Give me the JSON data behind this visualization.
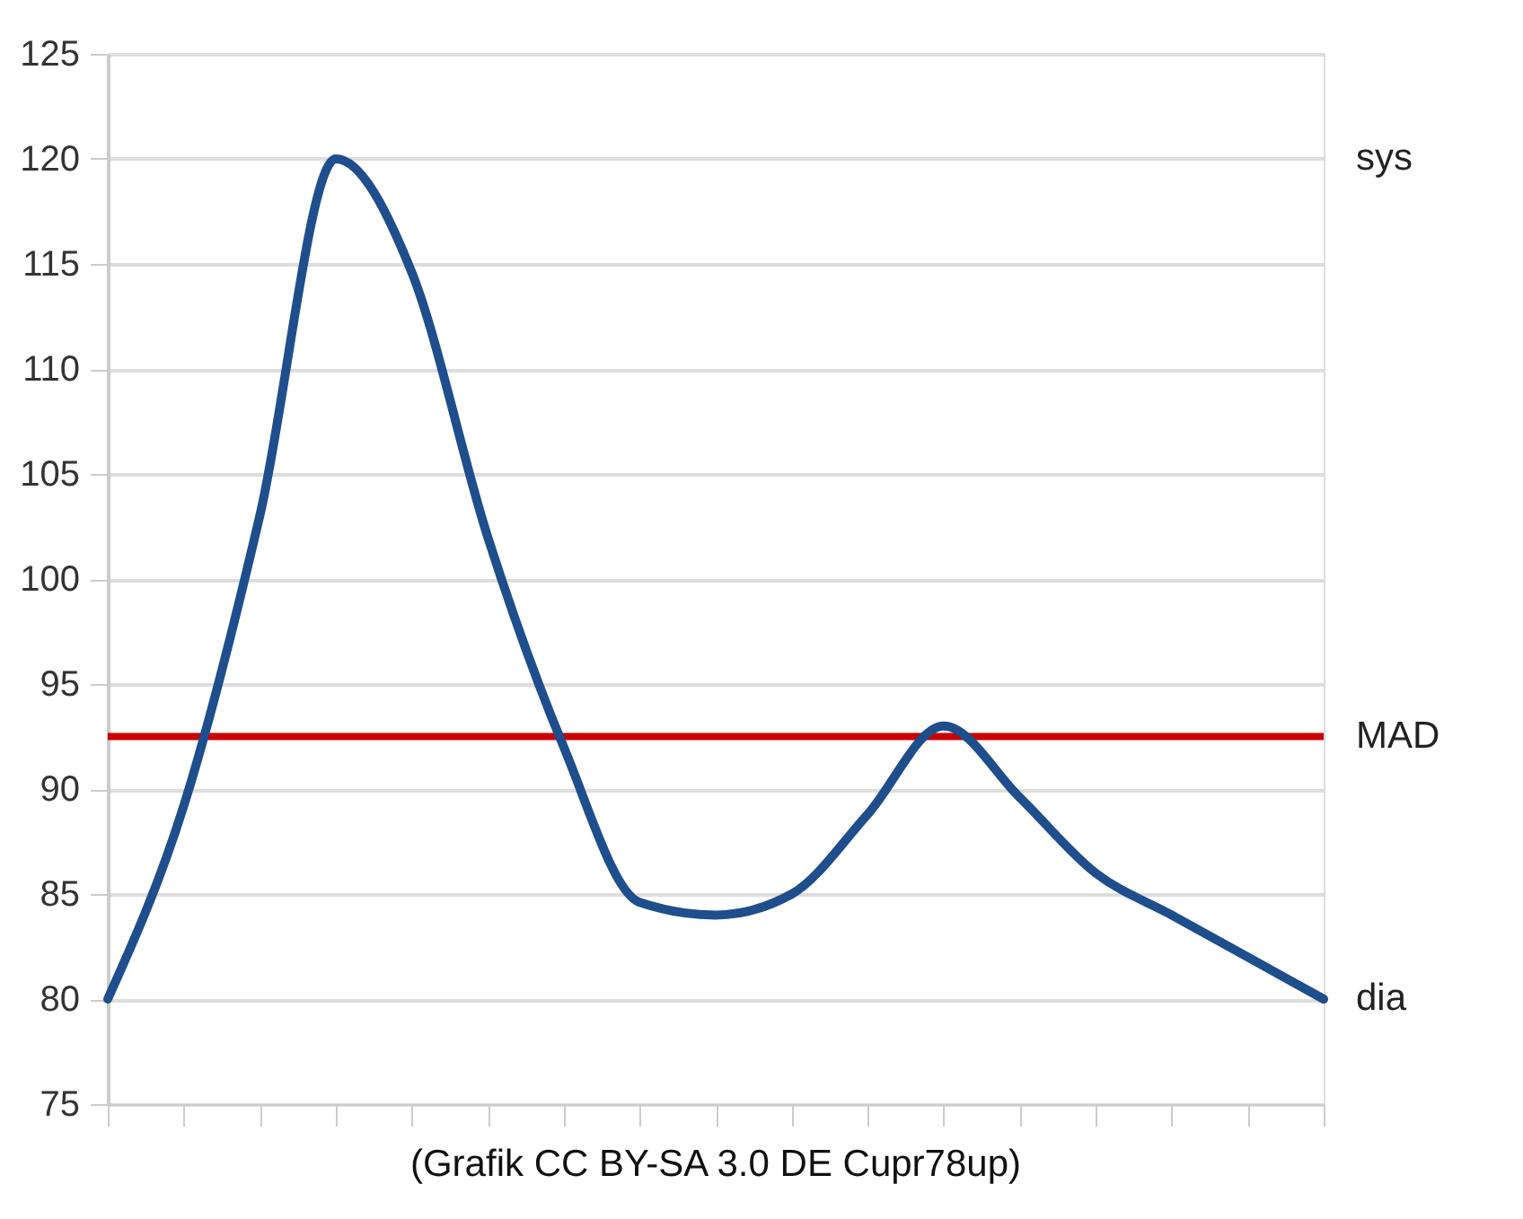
{
  "chart_data": {
    "type": "line",
    "categories": [
      null,
      null,
      null,
      null,
      null,
      null,
      null,
      null,
      null,
      null,
      null,
      null,
      null,
      null,
      null,
      null,
      null
    ],
    "series": [
      {
        "color": "#1f4e8c",
        "values": [
          80,
          89.2,
          103,
          120,
          114.6,
          102,
          92,
          84.6,
          84,
          85,
          88.8,
          93,
          89.6,
          86,
          84,
          82,
          80
        ]
      }
    ],
    "ylim": [
      75,
      125
    ],
    "yticks": [
      75,
      80,
      85,
      90,
      95,
      100,
      105,
      110,
      115,
      120,
      125
    ],
    "grid": "y",
    "ref_lines": [
      {
        "axis": "y",
        "value": 92.5,
        "label": "MAD",
        "color": "#cc0000"
      }
    ],
    "annotations": [
      "sys",
      "dia",
      "(Grafik CC BY-SA 3.0 DE Cupr78up)"
    ]
  }
}
